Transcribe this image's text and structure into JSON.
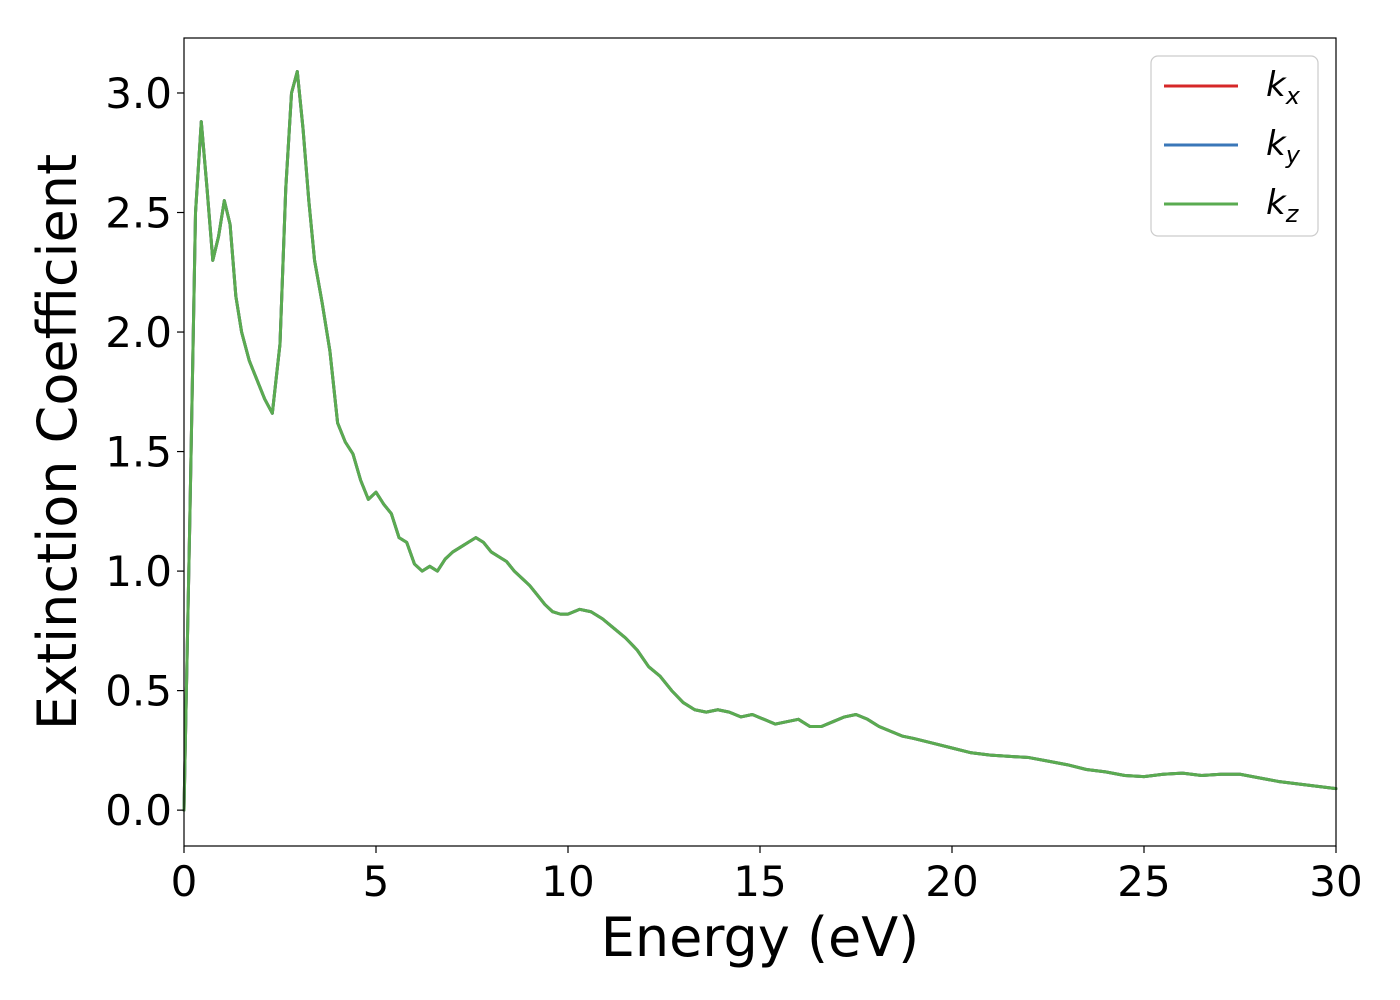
{
  "chart_data": {
    "type": "line",
    "title": "",
    "xlabel": "Energy (eV)",
    "ylabel": "Extinction Coefficient",
    "xlim": [
      0,
      30
    ],
    "ylim": [
      -0.15,
      3.23
    ],
    "xticks": [
      0,
      5,
      10,
      15,
      20,
      25,
      30
    ],
    "xtick_labels": [
      "0",
      "5",
      "10",
      "15",
      "20",
      "25",
      "30"
    ],
    "yticks": [
      0.0,
      0.5,
      1.0,
      1.5,
      2.0,
      2.5,
      3.0
    ],
    "ytick_labels": [
      "0.0",
      "0.5",
      "1.0",
      "1.5",
      "2.0",
      "2.5",
      "3.0"
    ],
    "grid": false,
    "legend_position": "top-right",
    "x": [
      0,
      0.15,
      0.3,
      0.45,
      0.6,
      0.75,
      0.9,
      1.05,
      1.2,
      1.35,
      1.5,
      1.7,
      1.9,
      2.1,
      2.3,
      2.5,
      2.65,
      2.8,
      2.95,
      3.1,
      3.25,
      3.4,
      3.6,
      3.8,
      4.0,
      4.2,
      4.4,
      4.6,
      4.8,
      5.0,
      5.2,
      5.4,
      5.6,
      5.8,
      6.0,
      6.2,
      6.4,
      6.6,
      6.8,
      7.0,
      7.2,
      7.4,
      7.6,
      7.8,
      8.0,
      8.2,
      8.4,
      8.6,
      8.8,
      9.0,
      9.2,
      9.4,
      9.6,
      9.8,
      10.0,
      10.3,
      10.6,
      10.9,
      11.2,
      11.5,
      11.8,
      12.1,
      12.4,
      12.7,
      13.0,
      13.3,
      13.6,
      13.9,
      14.2,
      14.5,
      14.8,
      15.1,
      15.4,
      15.7,
      16.0,
      16.3,
      16.6,
      16.9,
      17.2,
      17.5,
      17.8,
      18.1,
      18.4,
      18.7,
      19.0,
      19.5,
      20.0,
      20.5,
      21.0,
      21.5,
      22.0,
      22.5,
      23.0,
      23.5,
      24.0,
      24.5,
      25.0,
      25.5,
      26.0,
      26.5,
      27.0,
      27.5,
      28.0,
      28.5,
      29.0,
      29.5,
      30.0
    ],
    "series": [
      {
        "name": "k_x",
        "label_main": "k",
        "label_sub": "x",
        "color": "#d62728",
        "values": [
          0.0,
          1.2,
          2.5,
          2.88,
          2.6,
          2.3,
          2.4,
          2.55,
          2.45,
          2.15,
          2.0,
          1.88,
          1.8,
          1.72,
          1.66,
          1.95,
          2.6,
          3.0,
          3.09,
          2.85,
          2.55,
          2.3,
          2.12,
          1.92,
          1.62,
          1.54,
          1.49,
          1.38,
          1.3,
          1.33,
          1.28,
          1.24,
          1.14,
          1.12,
          1.03,
          1.0,
          1.02,
          1.0,
          1.05,
          1.08,
          1.1,
          1.12,
          1.14,
          1.12,
          1.08,
          1.06,
          1.04,
          1.0,
          0.97,
          0.94,
          0.9,
          0.86,
          0.83,
          0.82,
          0.82,
          0.84,
          0.83,
          0.8,
          0.76,
          0.72,
          0.67,
          0.6,
          0.56,
          0.5,
          0.45,
          0.42,
          0.41,
          0.42,
          0.41,
          0.39,
          0.4,
          0.38,
          0.36,
          0.37,
          0.38,
          0.35,
          0.35,
          0.37,
          0.39,
          0.4,
          0.38,
          0.35,
          0.33,
          0.31,
          0.3,
          0.28,
          0.26,
          0.24,
          0.23,
          0.225,
          0.22,
          0.205,
          0.19,
          0.17,
          0.16,
          0.145,
          0.14,
          0.15,
          0.155,
          0.145,
          0.15,
          0.15,
          0.135,
          0.12,
          0.11,
          0.1,
          0.09
        ]
      },
      {
        "name": "k_y",
        "label_main": "k",
        "label_sub": "y",
        "color": "#3a77b8",
        "values": [
          0.0,
          1.2,
          2.5,
          2.88,
          2.6,
          2.3,
          2.4,
          2.55,
          2.45,
          2.15,
          2.0,
          1.88,
          1.8,
          1.72,
          1.66,
          1.95,
          2.6,
          3.0,
          3.09,
          2.85,
          2.55,
          2.3,
          2.12,
          1.92,
          1.62,
          1.54,
          1.49,
          1.38,
          1.3,
          1.33,
          1.28,
          1.24,
          1.14,
          1.12,
          1.03,
          1.0,
          1.02,
          1.0,
          1.05,
          1.08,
          1.1,
          1.12,
          1.14,
          1.12,
          1.08,
          1.06,
          1.04,
          1.0,
          0.97,
          0.94,
          0.9,
          0.86,
          0.83,
          0.82,
          0.82,
          0.84,
          0.83,
          0.8,
          0.76,
          0.72,
          0.67,
          0.6,
          0.56,
          0.5,
          0.45,
          0.42,
          0.41,
          0.42,
          0.41,
          0.39,
          0.4,
          0.38,
          0.36,
          0.37,
          0.38,
          0.35,
          0.35,
          0.37,
          0.39,
          0.4,
          0.38,
          0.35,
          0.33,
          0.31,
          0.3,
          0.28,
          0.26,
          0.24,
          0.23,
          0.225,
          0.22,
          0.205,
          0.19,
          0.17,
          0.16,
          0.145,
          0.14,
          0.15,
          0.155,
          0.145,
          0.15,
          0.15,
          0.135,
          0.12,
          0.11,
          0.1,
          0.09
        ]
      },
      {
        "name": "k_z",
        "label_main": "k",
        "label_sub": "z",
        "color": "#5aab50",
        "values": [
          0.0,
          1.2,
          2.5,
          2.88,
          2.6,
          2.3,
          2.4,
          2.55,
          2.45,
          2.15,
          2.0,
          1.88,
          1.8,
          1.72,
          1.66,
          1.95,
          2.6,
          3.0,
          3.09,
          2.85,
          2.55,
          2.3,
          2.12,
          1.92,
          1.62,
          1.54,
          1.49,
          1.38,
          1.3,
          1.33,
          1.28,
          1.24,
          1.14,
          1.12,
          1.03,
          1.0,
          1.02,
          1.0,
          1.05,
          1.08,
          1.1,
          1.12,
          1.14,
          1.12,
          1.08,
          1.06,
          1.04,
          1.0,
          0.97,
          0.94,
          0.9,
          0.86,
          0.83,
          0.82,
          0.82,
          0.84,
          0.83,
          0.8,
          0.76,
          0.72,
          0.67,
          0.6,
          0.56,
          0.5,
          0.45,
          0.42,
          0.41,
          0.42,
          0.41,
          0.39,
          0.4,
          0.38,
          0.36,
          0.37,
          0.38,
          0.35,
          0.35,
          0.37,
          0.39,
          0.4,
          0.38,
          0.35,
          0.33,
          0.31,
          0.3,
          0.28,
          0.26,
          0.24,
          0.23,
          0.225,
          0.22,
          0.205,
          0.19,
          0.17,
          0.16,
          0.145,
          0.14,
          0.15,
          0.155,
          0.145,
          0.15,
          0.15,
          0.135,
          0.12,
          0.11,
          0.1,
          0.09
        ]
      }
    ]
  }
}
